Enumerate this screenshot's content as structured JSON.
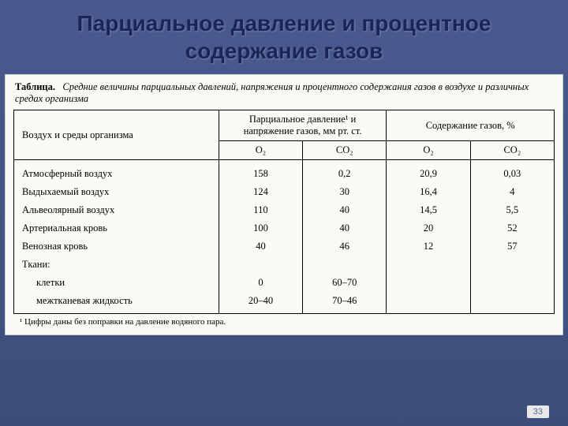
{
  "title": "Парциальное давление и процентное содержание газов",
  "caption_label": "Таблица.",
  "caption_text": "Средние величины парциальных давлений, напряжения и процентного содержания газов в воздухе и различных средах организма",
  "header": {
    "rowhead": "Воздух и среды организма",
    "group1": "Парциальное давление¹ и напряжение газов, мм рт. ст.",
    "group2": "Содержание газов, %",
    "sub": [
      "O₂",
      "CO₂",
      "O₂",
      "CO₂"
    ]
  },
  "rows": [
    {
      "label": "Атмосферный воздух",
      "vals": [
        "158",
        "0,2",
        "20,9",
        "0,03"
      ]
    },
    {
      "label": "Выдыхаемый воздух",
      "vals": [
        "124",
        "30",
        "16,4",
        "4"
      ]
    },
    {
      "label": "Альвеолярный воздух",
      "vals": [
        "110",
        "40",
        "14,5",
        "5,5"
      ]
    },
    {
      "label": "Артериальная кровь",
      "vals": [
        "100",
        "40",
        "20",
        "52"
      ]
    },
    {
      "label": "Венозная кровь",
      "vals": [
        "40",
        "46",
        "12",
        "57"
      ]
    },
    {
      "label": "Ткани:",
      "vals": [
        "",
        "",
        "",
        ""
      ]
    },
    {
      "label": "клетки",
      "vals": [
        "0",
        "60–70",
        "",
        ""
      ],
      "indent": true
    },
    {
      "label": "межтканевая жидкость",
      "vals": [
        "20–40",
        "70–46",
        "",
        ""
      ],
      "indent": true
    }
  ],
  "footnote": "¹ Цифры даны без поправки на давление водяного пара.",
  "page_number": "33",
  "colors": {
    "title_color": "#1a2456",
    "scan_bg": "#fafaf7",
    "border": "#000000"
  }
}
